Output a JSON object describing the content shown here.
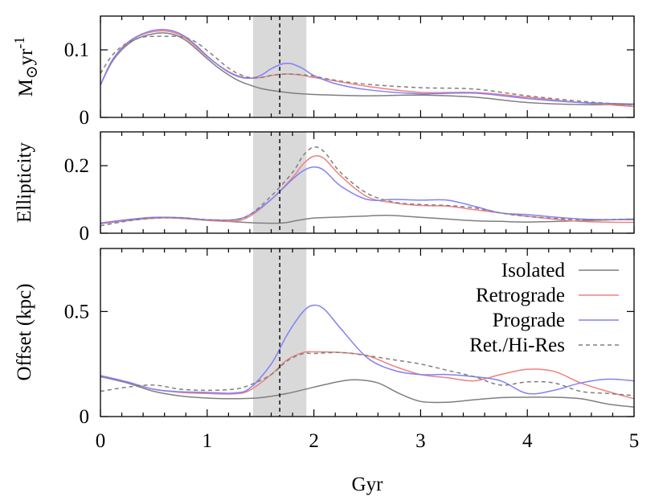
{
  "chart_data": [
    {
      "type": "line",
      "panel": "top",
      "ylabel": "M_⊙yr^-1",
      "ylabel_parts": {
        "base": "M",
        "sub": "⊙",
        "mid": "yr",
        "sup": "-1"
      },
      "xlim": [
        0,
        5
      ],
      "ylim": [
        0,
        0.15
      ],
      "yticks": [
        0,
        0.1
      ],
      "ytick_labels": [
        "0",
        "0.1"
      ],
      "series": [
        {
          "name": "Isolated",
          "color": "#7f7f7f",
          "dash": "solid",
          "x": [
            0,
            0.1,
            0.2,
            0.3,
            0.4,
            0.5,
            0.6,
            0.7,
            0.8,
            0.9,
            1.0,
            1.1,
            1.2,
            1.3,
            1.4,
            1.5,
            1.6,
            1.8,
            2.0,
            2.5,
            3.0,
            3.5,
            4.0,
            4.5,
            5.0
          ],
          "y": [
            0.048,
            0.08,
            0.1,
            0.113,
            0.12,
            0.124,
            0.125,
            0.122,
            0.114,
            0.101,
            0.087,
            0.074,
            0.063,
            0.054,
            0.048,
            0.043,
            0.04,
            0.036,
            0.034,
            0.032,
            0.033,
            0.03,
            0.022,
            0.019,
            0.019
          ]
        },
        {
          "name": "Retrograde",
          "color": "#f08080",
          "dash": "solid",
          "x": [
            0,
            0.1,
            0.2,
            0.3,
            0.4,
            0.5,
            0.6,
            0.7,
            0.8,
            0.9,
            1.0,
            1.1,
            1.2,
            1.3,
            1.4,
            1.5,
            1.6,
            1.7,
            1.8,
            1.9,
            2.0,
            2.2,
            2.5,
            3.0,
            3.5,
            4.0,
            4.5,
            5.0
          ],
          "y": [
            0.048,
            0.082,
            0.102,
            0.115,
            0.123,
            0.127,
            0.128,
            0.125,
            0.117,
            0.104,
            0.09,
            0.078,
            0.068,
            0.061,
            0.058,
            0.059,
            0.062,
            0.064,
            0.064,
            0.062,
            0.059,
            0.054,
            0.046,
            0.037,
            0.037,
            0.03,
            0.022,
            0.016
          ]
        },
        {
          "name": "Prograde",
          "color": "#8080f8",
          "dash": "solid",
          "x": [
            0,
            0.1,
            0.2,
            0.3,
            0.4,
            0.5,
            0.6,
            0.7,
            0.8,
            0.9,
            1.0,
            1.1,
            1.2,
            1.3,
            1.4,
            1.5,
            1.6,
            1.7,
            1.75,
            1.8,
            1.9,
            2.0,
            2.2,
            2.5,
            3.0,
            3.5,
            4.0,
            4.5,
            5.0
          ],
          "y": [
            0.048,
            0.082,
            0.103,
            0.116,
            0.124,
            0.129,
            0.13,
            0.127,
            0.119,
            0.106,
            0.091,
            0.078,
            0.067,
            0.06,
            0.058,
            0.062,
            0.072,
            0.079,
            0.08,
            0.079,
            0.072,
            0.062,
            0.05,
            0.041,
            0.035,
            0.036,
            0.028,
            0.022,
            0.02
          ]
        },
        {
          "name": "Ret./Hi-Res",
          "color": "#7f7f7f",
          "dash": "dashed",
          "x": [
            0,
            0.1,
            0.2,
            0.3,
            0.4,
            0.5,
            0.6,
            0.7,
            0.8,
            0.9,
            1.0,
            1.1,
            1.2,
            1.3,
            1.4,
            1.5,
            1.6,
            1.7,
            1.8,
            1.9,
            2.0,
            2.2,
            2.5,
            3.0,
            3.5,
            4.0,
            4.5,
            5.0
          ],
          "y": [
            0.065,
            0.09,
            0.105,
            0.114,
            0.119,
            0.12,
            0.12,
            0.12,
            0.118,
            0.111,
            0.099,
            0.086,
            0.073,
            0.064,
            0.059,
            0.059,
            0.062,
            0.064,
            0.064,
            0.063,
            0.061,
            0.055,
            0.049,
            0.044,
            0.042,
            0.032,
            0.024,
            0.018
          ]
        }
      ]
    },
    {
      "type": "line",
      "panel": "middle",
      "ylabel": "Ellipticity",
      "xlim": [
        0,
        5
      ],
      "ylim": [
        0,
        0.3
      ],
      "yticks": [
        0,
        0.2
      ],
      "ytick_labels": [
        "0",
        "0.2"
      ],
      "series": [
        {
          "name": "Isolated",
          "color": "#7f7f7f",
          "dash": "solid",
          "x": [
            0,
            0.25,
            0.5,
            0.75,
            1.0,
            1.25,
            1.5,
            1.7,
            1.85,
            2.0,
            2.25,
            2.5,
            2.7,
            3.0,
            3.25,
            3.5,
            3.75,
            4.0,
            4.5,
            5.0
          ],
          "y": [
            0.03,
            0.04,
            0.046,
            0.044,
            0.038,
            0.034,
            0.03,
            0.03,
            0.038,
            0.045,
            0.048,
            0.051,
            0.053,
            0.047,
            0.042,
            0.037,
            0.035,
            0.033,
            0.037,
            0.042
          ]
        },
        {
          "name": "Retrograde",
          "color": "#f08080",
          "dash": "solid",
          "x": [
            0,
            0.25,
            0.5,
            0.75,
            1.0,
            1.25,
            1.4,
            1.6,
            1.8,
            1.9,
            2.0,
            2.1,
            2.25,
            2.5,
            2.75,
            3.0,
            3.25,
            3.5,
            3.75,
            4.0,
            4.5,
            5.0
          ],
          "y": [
            0.028,
            0.037,
            0.044,
            0.045,
            0.038,
            0.036,
            0.05,
            0.1,
            0.165,
            0.205,
            0.228,
            0.22,
            0.17,
            0.108,
            0.09,
            0.082,
            0.08,
            0.07,
            0.06,
            0.05,
            0.035,
            0.032
          ]
        },
        {
          "name": "Prograde",
          "color": "#8080f8",
          "dash": "solid",
          "x": [
            0,
            0.25,
            0.5,
            0.75,
            1.0,
            1.25,
            1.4,
            1.6,
            1.8,
            1.9,
            2.0,
            2.1,
            2.25,
            2.5,
            2.75,
            3.0,
            3.25,
            3.5,
            3.75,
            4.0,
            4.5,
            5.0
          ],
          "y": [
            0.03,
            0.04,
            0.047,
            0.046,
            0.04,
            0.04,
            0.055,
            0.1,
            0.16,
            0.185,
            0.196,
            0.185,
            0.14,
            0.1,
            0.1,
            0.098,
            0.098,
            0.08,
            0.06,
            0.055,
            0.042,
            0.04
          ]
        },
        {
          "name": "Ret./Hi-Res",
          "color": "#7f7f7f",
          "dash": "dashed",
          "x": [
            0,
            0.25,
            0.5,
            0.75,
            1.0,
            1.25,
            1.4,
            1.6,
            1.8,
            1.9,
            2.0,
            2.1,
            2.25,
            2.5,
            2.75,
            3.0,
            3.25,
            3.5,
            3.75,
            4.0,
            4.5,
            5.0
          ],
          "y": [
            0.022,
            0.036,
            0.045,
            0.046,
            0.04,
            0.04,
            0.055,
            0.11,
            0.18,
            0.23,
            0.255,
            0.24,
            0.18,
            0.118,
            0.092,
            0.085,
            0.082,
            0.075,
            0.06,
            0.05,
            0.04,
            0.042
          ]
        }
      ]
    },
    {
      "type": "line",
      "panel": "bottom",
      "ylabel": "Offset (kpc)",
      "xlabel": "Gyr",
      "xlim": [
        0,
        5
      ],
      "ylim": [
        0,
        0.8
      ],
      "yticks": [
        0,
        0.5
      ],
      "ytick_labels": [
        "0",
        "0.5"
      ],
      "xticks": [
        0,
        1,
        2,
        3,
        4,
        5
      ],
      "xtick_labels": [
        "0",
        "1",
        "2",
        "3",
        "4",
        "5"
      ],
      "legend_position": "top-right",
      "series": [
        {
          "name": "Isolated",
          "color": "#7f7f7f",
          "dash": "solid",
          "x": [
            0,
            0.25,
            0.5,
            0.75,
            1.0,
            1.25,
            1.5,
            1.75,
            2.0,
            2.25,
            2.4,
            2.6,
            2.8,
            3.0,
            3.25,
            3.5,
            3.75,
            4.0,
            4.25,
            4.5,
            4.75,
            5.0
          ],
          "y": [
            0.19,
            0.16,
            0.12,
            0.098,
            0.088,
            0.085,
            0.09,
            0.11,
            0.14,
            0.168,
            0.175,
            0.16,
            0.11,
            0.072,
            0.068,
            0.08,
            0.09,
            0.092,
            0.092,
            0.085,
            0.06,
            0.045
          ]
        },
        {
          "name": "Retrograde",
          "color": "#f08080",
          "dash": "solid",
          "x": [
            0,
            0.25,
            0.5,
            0.75,
            1.0,
            1.25,
            1.4,
            1.6,
            1.75,
            1.9,
            2.0,
            2.25,
            2.5,
            2.75,
            3.0,
            3.25,
            3.5,
            3.75,
            4.0,
            4.25,
            4.5,
            4.75,
            5.0
          ],
          "y": [
            0.195,
            0.165,
            0.13,
            0.115,
            0.11,
            0.108,
            0.125,
            0.2,
            0.27,
            0.305,
            0.308,
            0.305,
            0.29,
            0.24,
            0.2,
            0.185,
            0.17,
            0.2,
            0.225,
            0.215,
            0.16,
            0.12,
            0.085
          ]
        },
        {
          "name": "Prograde",
          "color": "#8080f8",
          "dash": "solid",
          "x": [
            0,
            0.25,
            0.5,
            0.75,
            1.0,
            1.25,
            1.4,
            1.6,
            1.75,
            1.9,
            2.0,
            2.1,
            2.25,
            2.5,
            2.75,
            3.0,
            3.25,
            3.5,
            3.75,
            4.0,
            4.25,
            4.5,
            4.75,
            5.0
          ],
          "y": [
            0.195,
            0.165,
            0.13,
            0.118,
            0.115,
            0.112,
            0.135,
            0.25,
            0.39,
            0.5,
            0.53,
            0.51,
            0.42,
            0.28,
            0.22,
            0.2,
            0.2,
            0.19,
            0.17,
            0.11,
            0.125,
            0.16,
            0.178,
            0.17
          ]
        },
        {
          "name": "Ret./Hi-Res",
          "color": "#7f7f7f",
          "dash": "dashed",
          "x": [
            0,
            0.25,
            0.5,
            0.75,
            1.0,
            1.25,
            1.4,
            1.6,
            1.75,
            1.9,
            2.0,
            2.25,
            2.5,
            2.75,
            3.0,
            3.25,
            3.5,
            3.75,
            4.0,
            4.25,
            4.5,
            4.75,
            5.0
          ],
          "y": [
            0.12,
            0.14,
            0.15,
            0.13,
            0.125,
            0.13,
            0.15,
            0.2,
            0.265,
            0.3,
            0.3,
            0.305,
            0.29,
            0.27,
            0.25,
            0.22,
            0.19,
            0.15,
            0.165,
            0.16,
            0.12,
            0.11,
            0.1
          ]
        }
      ]
    }
  ],
  "shaded_band": {
    "x": [
      1.43,
      1.93
    ],
    "color": "#d9d9d9"
  },
  "vertical_dashed_line": {
    "x": 1.68,
    "color": "#000000"
  },
  "legend": [
    {
      "label": "Isolated",
      "color": "#7f7f7f",
      "dash": "solid"
    },
    {
      "label": "Retrograde",
      "color": "#f08080",
      "dash": "solid"
    },
    {
      "label": "Prograde",
      "color": "#8080f8",
      "dash": "solid"
    },
    {
      "label": "Ret./Hi-Res",
      "color": "#7f7f7f",
      "dash": "dashed"
    }
  ]
}
